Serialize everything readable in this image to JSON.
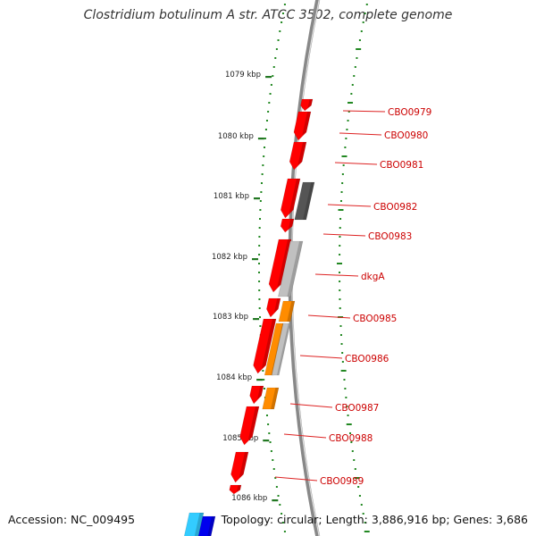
{
  "title": "Clostridium botulinum A str. ATCC 3502, complete genome",
  "accession": "Accession: NC_009495",
  "topology": "Topology: circular; Length: 3,886,916 bp; Genes: 3,686",
  "scale_labels": [
    "1079 kbp",
    "1080 kbp",
    "1081 kbp",
    "1082 kbp",
    "1083 kbp",
    "1084 kbp",
    "1085 kbp",
    "1086 kbp"
  ],
  "genes": [
    "CBO0979",
    "CBO0980",
    "CBO0981",
    "CBO0982",
    "CBO0983",
    "dkgA",
    "CBO0985",
    "CBO0986",
    "CBO0987",
    "CBO0988",
    "CBO0989"
  ],
  "colors": {
    "cds_forward": "#ff0000",
    "cog_dark": "#555555",
    "cog_light": "#c0c0c0",
    "cog_orange": "#ff8c00",
    "cog_cyan": "#33ccff",
    "cog_blue": "#0000ee",
    "gc_tick": "#228822",
    "backbone": "#888888",
    "label": "#cc0000"
  }
}
